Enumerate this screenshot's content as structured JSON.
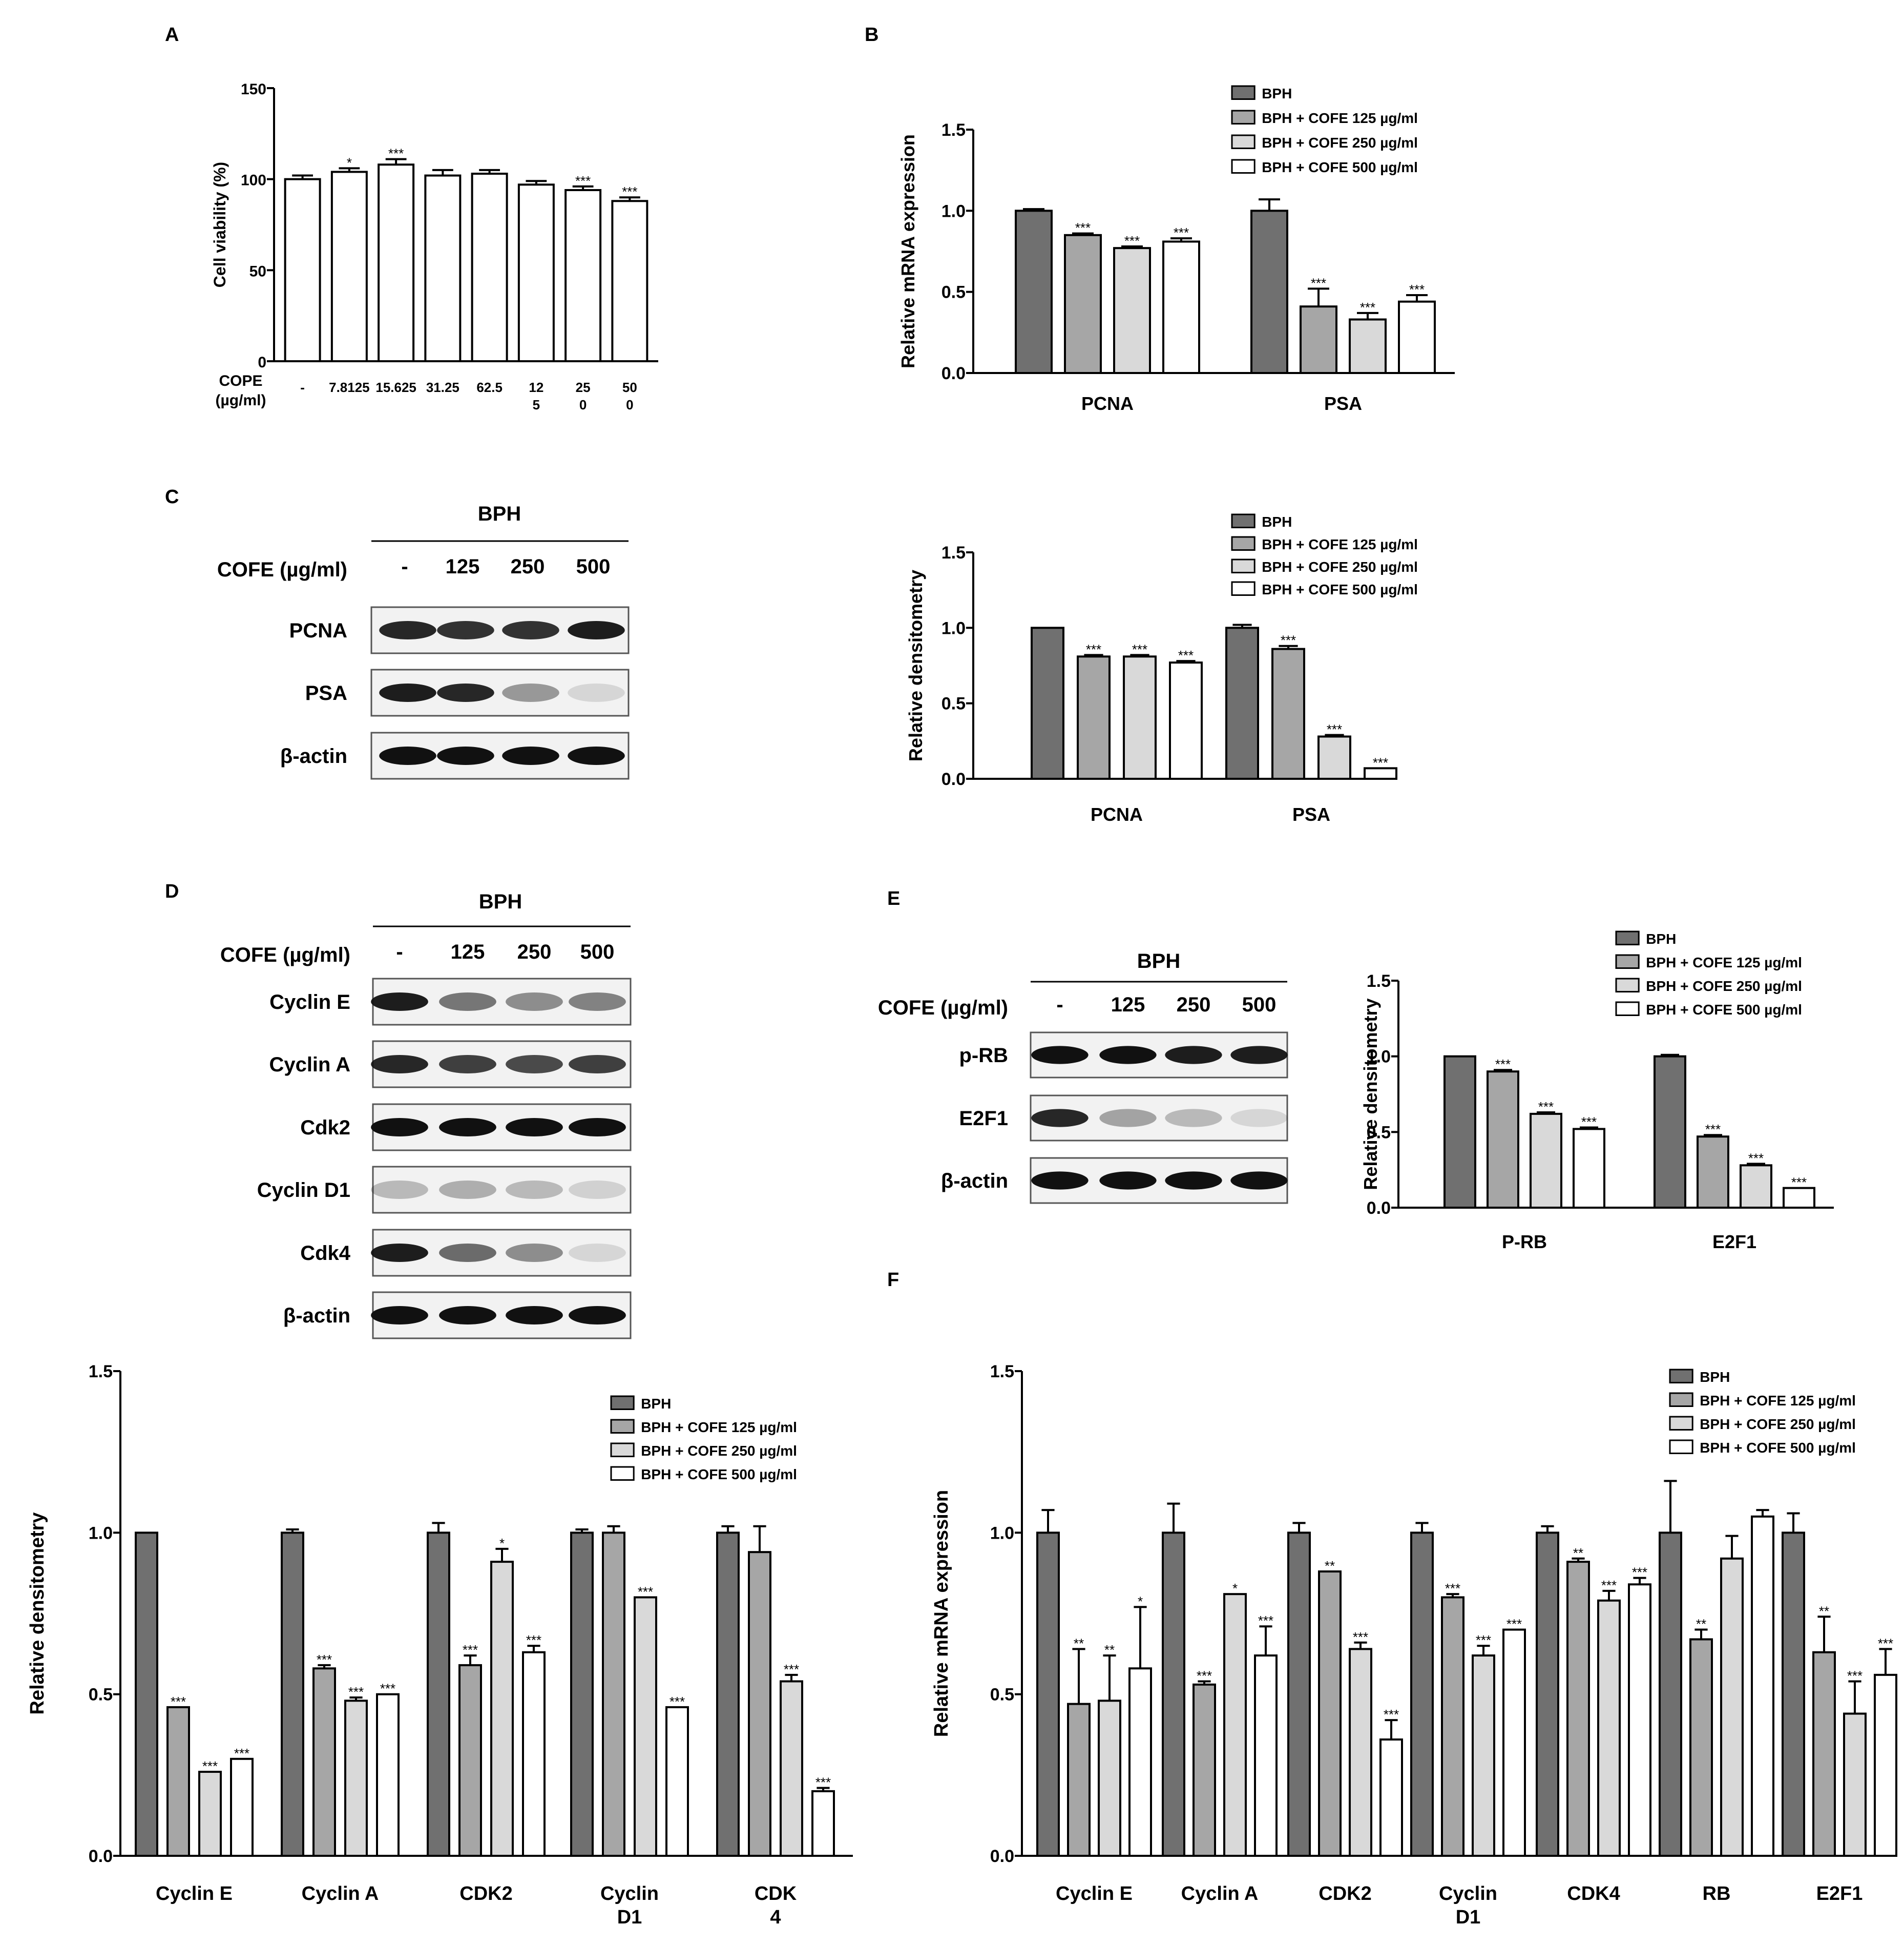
{
  "panels": {
    "A": "A",
    "B": "B",
    "C": "C",
    "D": "D",
    "E": "E",
    "F": "F"
  },
  "legend": [
    "BPH",
    "BPH + COFE 125 µg/ml",
    "BPH + COFE 250 µg/ml",
    "BPH + COFE 500 µg/ml"
  ],
  "colors": [
    "#707070",
    "#a6a6a6",
    "#d9d9d9",
    "#ffffff"
  ],
  "blot_common": {
    "bph": "BPH",
    "cofe_label": "COFE (µg/ml)",
    "lanes": [
      "-",
      "125",
      "250",
      "500"
    ]
  },
  "blot_C_rows": [
    "PCNA",
    "PSA",
    "β-actin"
  ],
  "blot_D_rows": [
    "Cyclin E",
    "Cyclin A",
    "Cdk2",
    "Cyclin D1",
    "Cdk4",
    "β-actin"
  ],
  "blot_E_rows": [
    "p-RB",
    "E2F1",
    "β-actin"
  ],
  "chart_data": [
    {
      "id": "A",
      "type": "bar",
      "title": "",
      "ylabel": "Cell viability (%)",
      "ylim": [
        0,
        150
      ],
      "yticks": [
        "0",
        "50",
        "100",
        "150"
      ],
      "xaxis_title": [
        "COPE",
        "(µg/ml)"
      ],
      "categories": [
        [
          "-"
        ],
        [
          "7.8125"
        ],
        [
          "15.625"
        ],
        [
          "31.25"
        ],
        [
          "62.5"
        ],
        [
          "12",
          "5"
        ],
        [
          "25",
          "0"
        ],
        [
          "50",
          "0"
        ]
      ],
      "values": [
        100,
        104,
        108,
        102,
        103,
        97,
        94,
        88
      ],
      "errors": [
        2,
        2,
        3,
        3,
        2,
        2,
        2,
        2
      ],
      "sig": [
        "",
        "*",
        "***",
        "",
        "",
        "",
        "***",
        "***"
      ]
    },
    {
      "id": "B",
      "type": "bar",
      "ylabel": "Relative mRNA expression",
      "ylim": [
        0,
        1.5
      ],
      "yticks": [
        "0.0",
        "0.5",
        "1.0",
        "1.5"
      ],
      "categories": [
        [
          "PCNA"
        ],
        [
          "PSA"
        ]
      ],
      "series": [
        {
          "name": "BPH",
          "values": [
            1.0,
            1.0
          ],
          "errors": [
            0.01,
            0.07
          ],
          "sig": [
            "",
            ""
          ]
        },
        {
          "name": "BPH + COFE 125 µg/ml",
          "values": [
            0.85,
            0.41
          ],
          "errors": [
            0.01,
            0.11
          ],
          "sig": [
            "***",
            "***"
          ]
        },
        {
          "name": "BPH + COFE 250 µg/ml",
          "values": [
            0.77,
            0.33
          ],
          "errors": [
            0.01,
            0.04
          ],
          "sig": [
            "***",
            "***"
          ]
        },
        {
          "name": "BPH + COFE 500 µg/ml",
          "values": [
            0.81,
            0.44
          ],
          "errors": [
            0.02,
            0.04
          ],
          "sig": [
            "***",
            "***"
          ]
        }
      ]
    },
    {
      "id": "C",
      "type": "bar",
      "ylabel": "Relative densitometry",
      "ylim": [
        0,
        1.5
      ],
      "yticks": [
        "0.0",
        "0.5",
        "1.0",
        "1.5"
      ],
      "categories": [
        [
          "PCNA"
        ],
        [
          "PSA"
        ]
      ],
      "series": [
        {
          "name": "BPH",
          "values": [
            1.0,
            1.0
          ],
          "errors": [
            0.0,
            0.02
          ],
          "sig": [
            "",
            ""
          ]
        },
        {
          "name": "BPH + COFE 125 µg/ml",
          "values": [
            0.81,
            0.86
          ],
          "errors": [
            0.01,
            0.02
          ],
          "sig": [
            "***",
            "***"
          ]
        },
        {
          "name": "BPH + COFE 250 µg/ml",
          "values": [
            0.81,
            0.28
          ],
          "errors": [
            0.01,
            0.01
          ],
          "sig": [
            "***",
            "***"
          ]
        },
        {
          "name": "BPH + COFE 500 µg/ml",
          "values": [
            0.77,
            0.07
          ],
          "errors": [
            0.01,
            0.0
          ],
          "sig": [
            "***",
            "***"
          ]
        }
      ]
    },
    {
      "id": "E",
      "type": "bar",
      "ylabel": "Relative densitometry",
      "ylim": [
        0,
        1.5
      ],
      "yticks": [
        "0.0",
        "0.5",
        "1.0",
        "1.5"
      ],
      "categories": [
        [
          "P-RB"
        ],
        [
          "E2F1"
        ]
      ],
      "series": [
        {
          "name": "BPH",
          "values": [
            1.0,
            1.0
          ],
          "errors": [
            0.0,
            0.01
          ],
          "sig": [
            "",
            ""
          ]
        },
        {
          "name": "BPH + COFE 125 µg/ml",
          "values": [
            0.9,
            0.47
          ],
          "errors": [
            0.01,
            0.01
          ],
          "sig": [
            "***",
            "***"
          ]
        },
        {
          "name": "BPH + COFE 250 µg/ml",
          "values": [
            0.62,
            0.28
          ],
          "errors": [
            0.01,
            0.01
          ],
          "sig": [
            "***",
            "***"
          ]
        },
        {
          "name": "BPH + COFE 500 µg/ml",
          "values": [
            0.52,
            0.13
          ],
          "errors": [
            0.01,
            0.0
          ],
          "sig": [
            "***",
            "***"
          ]
        }
      ]
    },
    {
      "id": "D",
      "type": "bar",
      "ylabel": "Relative densitometry",
      "ylim": [
        0,
        1.5
      ],
      "yticks": [
        "0.0",
        "0.5",
        "1.0",
        "1.5"
      ],
      "categories": [
        [
          "Cyclin E"
        ],
        [
          "Cyclin A"
        ],
        [
          "CDK2"
        ],
        [
          "Cyclin",
          "D1"
        ],
        [
          "CDK",
          "4"
        ]
      ],
      "series": [
        {
          "name": "BPH",
          "values": [
            1.0,
            1.0,
            1.0,
            1.0,
            1.0
          ],
          "errors": [
            0.0,
            0.01,
            0.03,
            0.01,
            0.02
          ],
          "sig": [
            "",
            "",
            "",
            "",
            ""
          ]
        },
        {
          "name": "BPH + COFE 125 µg/ml",
          "values": [
            0.46,
            0.58,
            0.59,
            1.0,
            0.94
          ],
          "errors": [
            0.0,
            0.01,
            0.03,
            0.02,
            0.08
          ],
          "sig": [
            "***",
            "***",
            "***",
            "",
            ""
          ]
        },
        {
          "name": "BPH + COFE 250 µg/ml",
          "values": [
            0.26,
            0.48,
            0.91,
            0.8,
            0.54
          ],
          "errors": [
            0.0,
            0.01,
            0.04,
            0.0,
            0.02
          ],
          "sig": [
            "***",
            "***",
            "*",
            "***",
            "***"
          ]
        },
        {
          "name": "BPH + COFE 500 µg/ml",
          "values": [
            0.3,
            0.5,
            0.63,
            0.46,
            0.2
          ],
          "errors": [
            0.0,
            0.0,
            0.02,
            0.0,
            0.01
          ],
          "sig": [
            "***",
            "***",
            "***",
            "***",
            "***"
          ]
        }
      ]
    },
    {
      "id": "F",
      "type": "bar",
      "ylabel": "Relative mRNA expression",
      "ylim": [
        0,
        1.5
      ],
      "yticks": [
        "0.0",
        "0.5",
        "1.0",
        "1.5"
      ],
      "categories": [
        [
          "Cyclin E"
        ],
        [
          "Cyclin A"
        ],
        [
          "CDK2"
        ],
        [
          "Cyclin",
          "D1"
        ],
        [
          "CDK4"
        ],
        [
          "RB"
        ],
        [
          "E2F1"
        ]
      ],
      "series": [
        {
          "name": "BPH",
          "values": [
            1.0,
            1.0,
            1.0,
            1.0,
            1.0,
            1.0,
            1.0
          ],
          "errors": [
            0.07,
            0.09,
            0.03,
            0.03,
            0.02,
            0.16,
            0.06
          ],
          "sig": [
            "",
            "",
            "",
            "",
            "",
            "",
            ""
          ]
        },
        {
          "name": "BPH + COFE 125 µg/ml",
          "values": [
            0.47,
            0.53,
            0.88,
            0.8,
            0.91,
            0.67,
            0.63
          ],
          "errors": [
            0.17,
            0.01,
            0.0,
            0.01,
            0.01,
            0.03,
            0.11
          ],
          "sig": [
            "**",
            "***",
            "**",
            "***",
            "**",
            "**",
            "**"
          ]
        },
        {
          "name": "BPH + COFE 250 µg/ml",
          "values": [
            0.48,
            0.81,
            0.64,
            0.62,
            0.79,
            0.92,
            0.44
          ],
          "errors": [
            0.14,
            0.0,
            0.02,
            0.03,
            0.03,
            0.07,
            0.1
          ],
          "sig": [
            "**",
            "*",
            "***",
            "***",
            "***",
            "",
            "***"
          ]
        },
        {
          "name": "BPH + COFE 500 µg/ml",
          "values": [
            0.58,
            0.62,
            0.36,
            0.7,
            0.84,
            1.05,
            0.56
          ],
          "errors": [
            0.19,
            0.09,
            0.06,
            0.0,
            0.02,
            0.02,
            0.08
          ],
          "sig": [
            "*",
            "***",
            "***",
            "***",
            "***",
            "",
            "***"
          ]
        }
      ]
    }
  ]
}
